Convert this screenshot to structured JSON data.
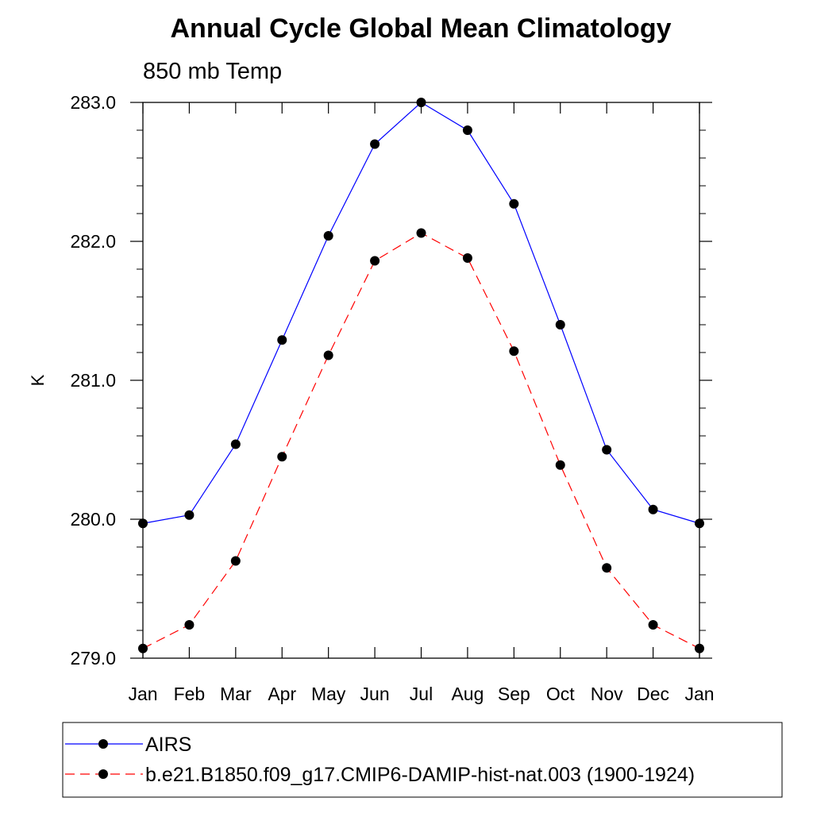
{
  "chart_data": {
    "type": "line",
    "title": "Annual Cycle Global Mean Climatology",
    "subtitle": "850 mb Temp",
    "xlabel": "",
    "ylabel": "K",
    "categories": [
      "Jan",
      "Feb",
      "Mar",
      "Apr",
      "May",
      "Jun",
      "Jul",
      "Aug",
      "Sep",
      "Oct",
      "Nov",
      "Dec",
      "Jan"
    ],
    "ylim": [
      279.0,
      283.0
    ],
    "yticks": [
      "279.0",
      "280.0",
      "281.0",
      "282.0",
      "283.0"
    ],
    "grid": false,
    "legend_position": "bottom",
    "series": [
      {
        "name": "AIRS",
        "color": "#0000ff",
        "dash": "solid",
        "values": [
          279.97,
          280.03,
          280.54,
          281.29,
          282.04,
          282.7,
          283.0,
          282.8,
          282.27,
          281.4,
          280.5,
          280.07,
          279.97
        ]
      },
      {
        "name": "b.e21.B1850.f09_g17.CMIP6-DAMIP-hist-nat.003 (1900-1924)",
        "color": "#ff0000",
        "dash": "dashed",
        "values": [
          279.07,
          279.24,
          279.7,
          280.45,
          281.18,
          281.86,
          282.06,
          281.88,
          281.21,
          280.39,
          279.65,
          279.24,
          279.07
        ]
      }
    ]
  }
}
